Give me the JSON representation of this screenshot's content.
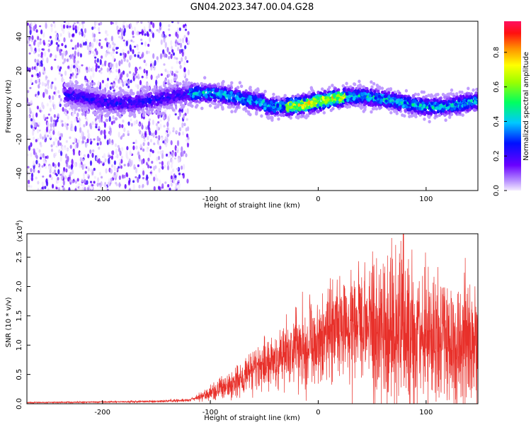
{
  "title": "GN04.2023.347.00.04.G28",
  "chart_data": [
    {
      "type": "heatmap",
      "xlabel": "Height of straight line (km)",
      "ylabel": "Frequency (Hz)",
      "xlim": [
        -270,
        148
      ],
      "ylim": [
        -50,
        49
      ],
      "xticks": [
        -200,
        -100,
        0,
        100
      ],
      "yticks": [
        -40,
        -20,
        0,
        20,
        40
      ],
      "colorbar": {
        "label": "Normalized spectral amplitude",
        "range": [
          0,
          0.98
        ],
        "ticks": [
          0.0,
          0.2,
          0.4,
          0.6,
          0.8
        ],
        "colormap": "rainbow (violet-blue-cyan-green-yellow-orange-red-pink)"
      },
      "features": {
        "ridge_center_hz": 2,
        "ridge_halfwidth_hz": 8,
        "noisy_region_km": [
          -270,
          -120
        ],
        "peak_amplitude_region_km": [
          -30,
          25
        ]
      },
      "grid": false
    },
    {
      "type": "line",
      "xlabel": "Height of straight line (km)",
      "ylabel": "SNR (10 * v/v)",
      "y_scale_label": "(x10",
      "y_scale_exp": "4",
      "xlim": [
        -270,
        148
      ],
      "ylim": [
        0,
        29000
      ],
      "xticks": [
        -200,
        -100,
        0,
        100
      ],
      "yticks": [
        "0.0",
        "0.5",
        "1.0",
        "1.5",
        "2.0",
        "2.5"
      ],
      "series": [
        {
          "color": "#e8302a",
          "envelope": {
            "x": [
              -270,
              -200,
              -150,
              -120,
              -100,
              -80,
              -60,
              -40,
              -20,
              0,
              20,
              40,
              60,
              75,
              90,
              110,
              130,
              148
            ],
            "y": [
              200,
              300,
              400,
              600,
              1800,
              3500,
              5500,
              7500,
              9500,
              11000,
              12500,
              13500,
              13000,
              12500,
              11500,
              11000,
              10500,
              10500
            ]
          }
        }
      ],
      "grid": false
    }
  ]
}
